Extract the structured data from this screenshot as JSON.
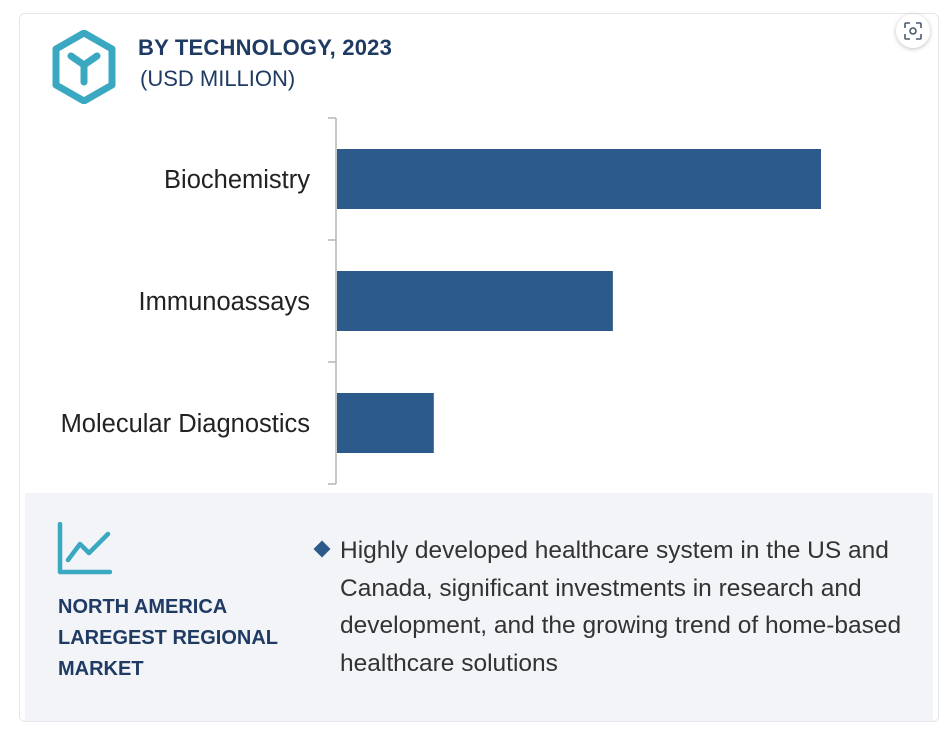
{
  "header": {
    "title": "BY TECHNOLOGY, 2023",
    "subtitle": "(USD MILLION)"
  },
  "icons": {
    "logo": "hexagon-y-logo-icon",
    "scan": "scan-focus-icon",
    "trend": "trend-chart-icon"
  },
  "colors": {
    "bar": "#2c5a8a",
    "title": "#1f3b63",
    "accent": "#3aa8c1",
    "panel_bg": "#f2f4f7"
  },
  "chart_data": {
    "type": "bar",
    "orientation": "horizontal",
    "title": "BY TECHNOLOGY, 2023",
    "subtitle": "(USD MILLION)",
    "categories": [
      "Biochemistry",
      "Immunoassays",
      "Molecular Diagnostics"
    ],
    "values": [
      100,
      57,
      20
    ],
    "xlim": [
      0,
      100
    ],
    "value_axis_visible": false,
    "grid": false,
    "legend": "none"
  },
  "footer": {
    "region_lines": [
      "NORTH AMERICA",
      "LAREGEST REGIONAL",
      "MARKET"
    ],
    "insight": "Highly developed healthcare system in the US and Canada, significant investments in research and development, and the growing trend of home-based healthcare solutions"
  }
}
